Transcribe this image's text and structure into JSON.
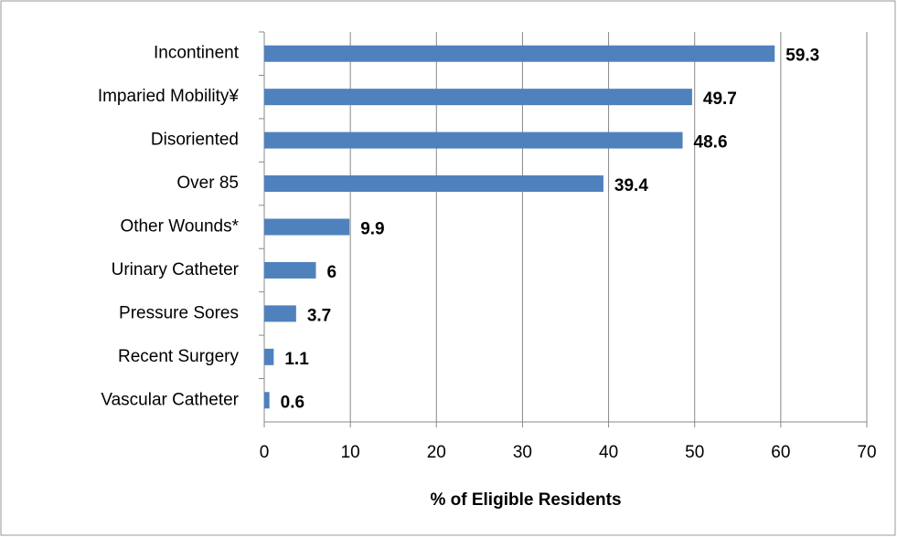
{
  "chart_data": {
    "type": "bar",
    "orientation": "horizontal",
    "x_label": "% of Eligible Residents",
    "categories": [
      "Incontinent",
      "Imparied Mobility¥",
      "Disoriented",
      "Over 85",
      "Other Wounds*",
      "Urinary Catheter",
      "Pressure Sores",
      "Recent Surgery",
      "Vascular Catheter"
    ],
    "values": [
      59.3,
      49.7,
      48.6,
      39.4,
      9.9,
      6,
      3.7,
      1.1,
      0.6
    ],
    "color": "#4f81bd",
    "xlim": [
      0,
      70
    ],
    "xticks": [
      0,
      10,
      20,
      30,
      40,
      50,
      60,
      70
    ],
    "grid": true
  }
}
